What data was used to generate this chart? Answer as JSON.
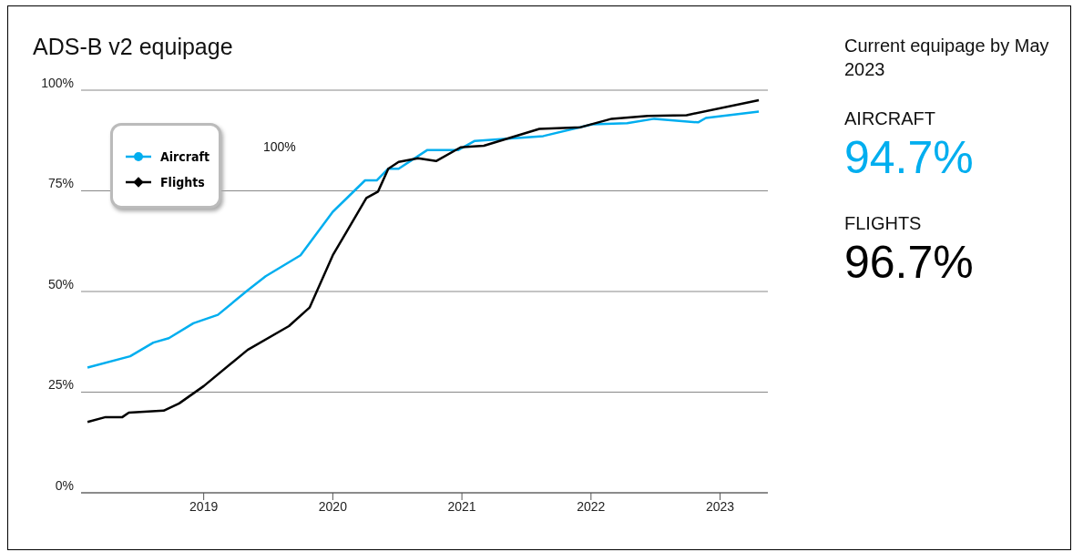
{
  "chart_data": {
    "type": "line",
    "title": "ADS-B v2 equipage",
    "xlim": [
      2018.05,
      2023.37
    ],
    "xticks": [
      2019,
      2020,
      2021,
      2022,
      2023
    ],
    "ylim": [
      0,
      100
    ],
    "yticks": [
      {
        "value": 0,
        "label": "0%"
      },
      {
        "value": 25,
        "label": "25%"
      },
      {
        "value": 50,
        "label": "50%"
      },
      {
        "value": 75,
        "label": "75%"
      },
      {
        "value": 100,
        "label": "100%"
      }
    ],
    "grid": "y",
    "legend": "top left",
    "marker": "none",
    "line_style": "solid",
    "annotations": [
      "100%",
      "Current equipage by May 2023",
      "AIRCRAFT",
      "94.7%",
      "FLIGHTS",
      "96.7%"
    ],
    "series": [
      {
        "name": "Aircraft",
        "color": "#00aeef",
        "x": [
          2018.1,
          2018.43,
          2018.61,
          2018.73,
          2018.92,
          2019.11,
          2019.34,
          2019.48,
          2019.75,
          2020.0,
          2020.25,
          2020.34,
          2020.43,
          2020.51,
          2020.73,
          2020.97,
          2021.1,
          2021.63,
          2022.01,
          2022.28,
          2022.49,
          2022.83,
          2022.89,
          2023.3
        ],
        "values": [
          31.1,
          33.9,
          37.3,
          38.4,
          42.1,
          44.2,
          50.3,
          53.8,
          59.0,
          69.8,
          77.6,
          77.6,
          80.5,
          80.5,
          85.1,
          85.1,
          87.4,
          88.6,
          91.5,
          91.8,
          92.9,
          92.0,
          93.1,
          94.7
        ]
      },
      {
        "name": "Flights",
        "color": "#000000",
        "x": [
          2018.1,
          2018.24,
          2018.37,
          2018.42,
          2018.69,
          2018.81,
          2019.0,
          2019.34,
          2019.66,
          2019.82,
          2020.0,
          2020.26,
          2020.35,
          2020.43,
          2020.51,
          2020.66,
          2020.8,
          2020.99,
          2021.17,
          2021.6,
          2021.92,
          2022.16,
          2022.44,
          2022.74,
          2023.3
        ],
        "values": [
          17.6,
          18.8,
          18.8,
          19.9,
          20.4,
          22.2,
          26.5,
          35.5,
          41.4,
          46.0,
          59.0,
          73.2,
          74.8,
          80.5,
          82.2,
          83.1,
          82.4,
          85.8,
          86.2,
          90.4,
          90.8,
          92.9,
          93.6,
          93.8,
          97.5
        ]
      }
    ]
  }
}
